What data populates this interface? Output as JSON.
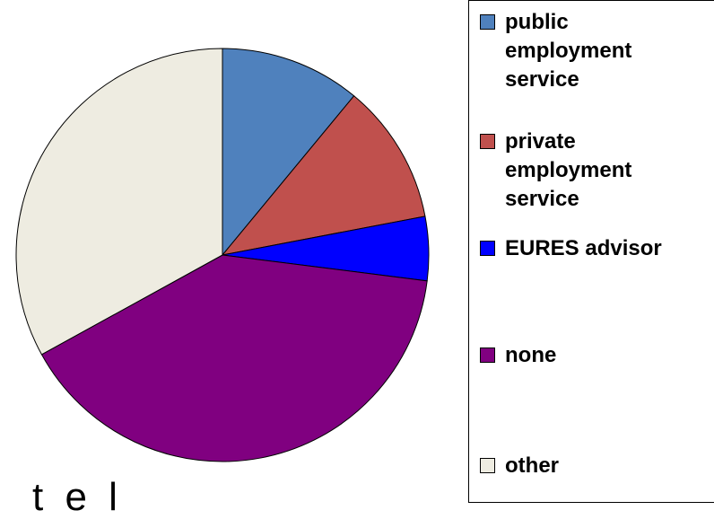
{
  "chart_data": {
    "type": "pie",
    "title": "",
    "start_angle_deg": 0,
    "direction": "clockwise",
    "slices": [
      {
        "label": "public employment service",
        "value": 11,
        "color": "#4f81bd"
      },
      {
        "label": "private employment service",
        "value": 11,
        "color": "#c0504d"
      },
      {
        "label": "EURES advisor",
        "value": 5,
        "color": "#0000ff"
      },
      {
        "label": "none",
        "value": 40,
        "color": "#800080"
      },
      {
        "label": "other",
        "value": 33,
        "color": "#eeece1"
      }
    ],
    "legend": {
      "placement": "right",
      "items": [
        "public employment service",
        "private employment service",
        "EURES advisor",
        "none",
        "other"
      ]
    }
  },
  "bottom_text": "t  e  l"
}
